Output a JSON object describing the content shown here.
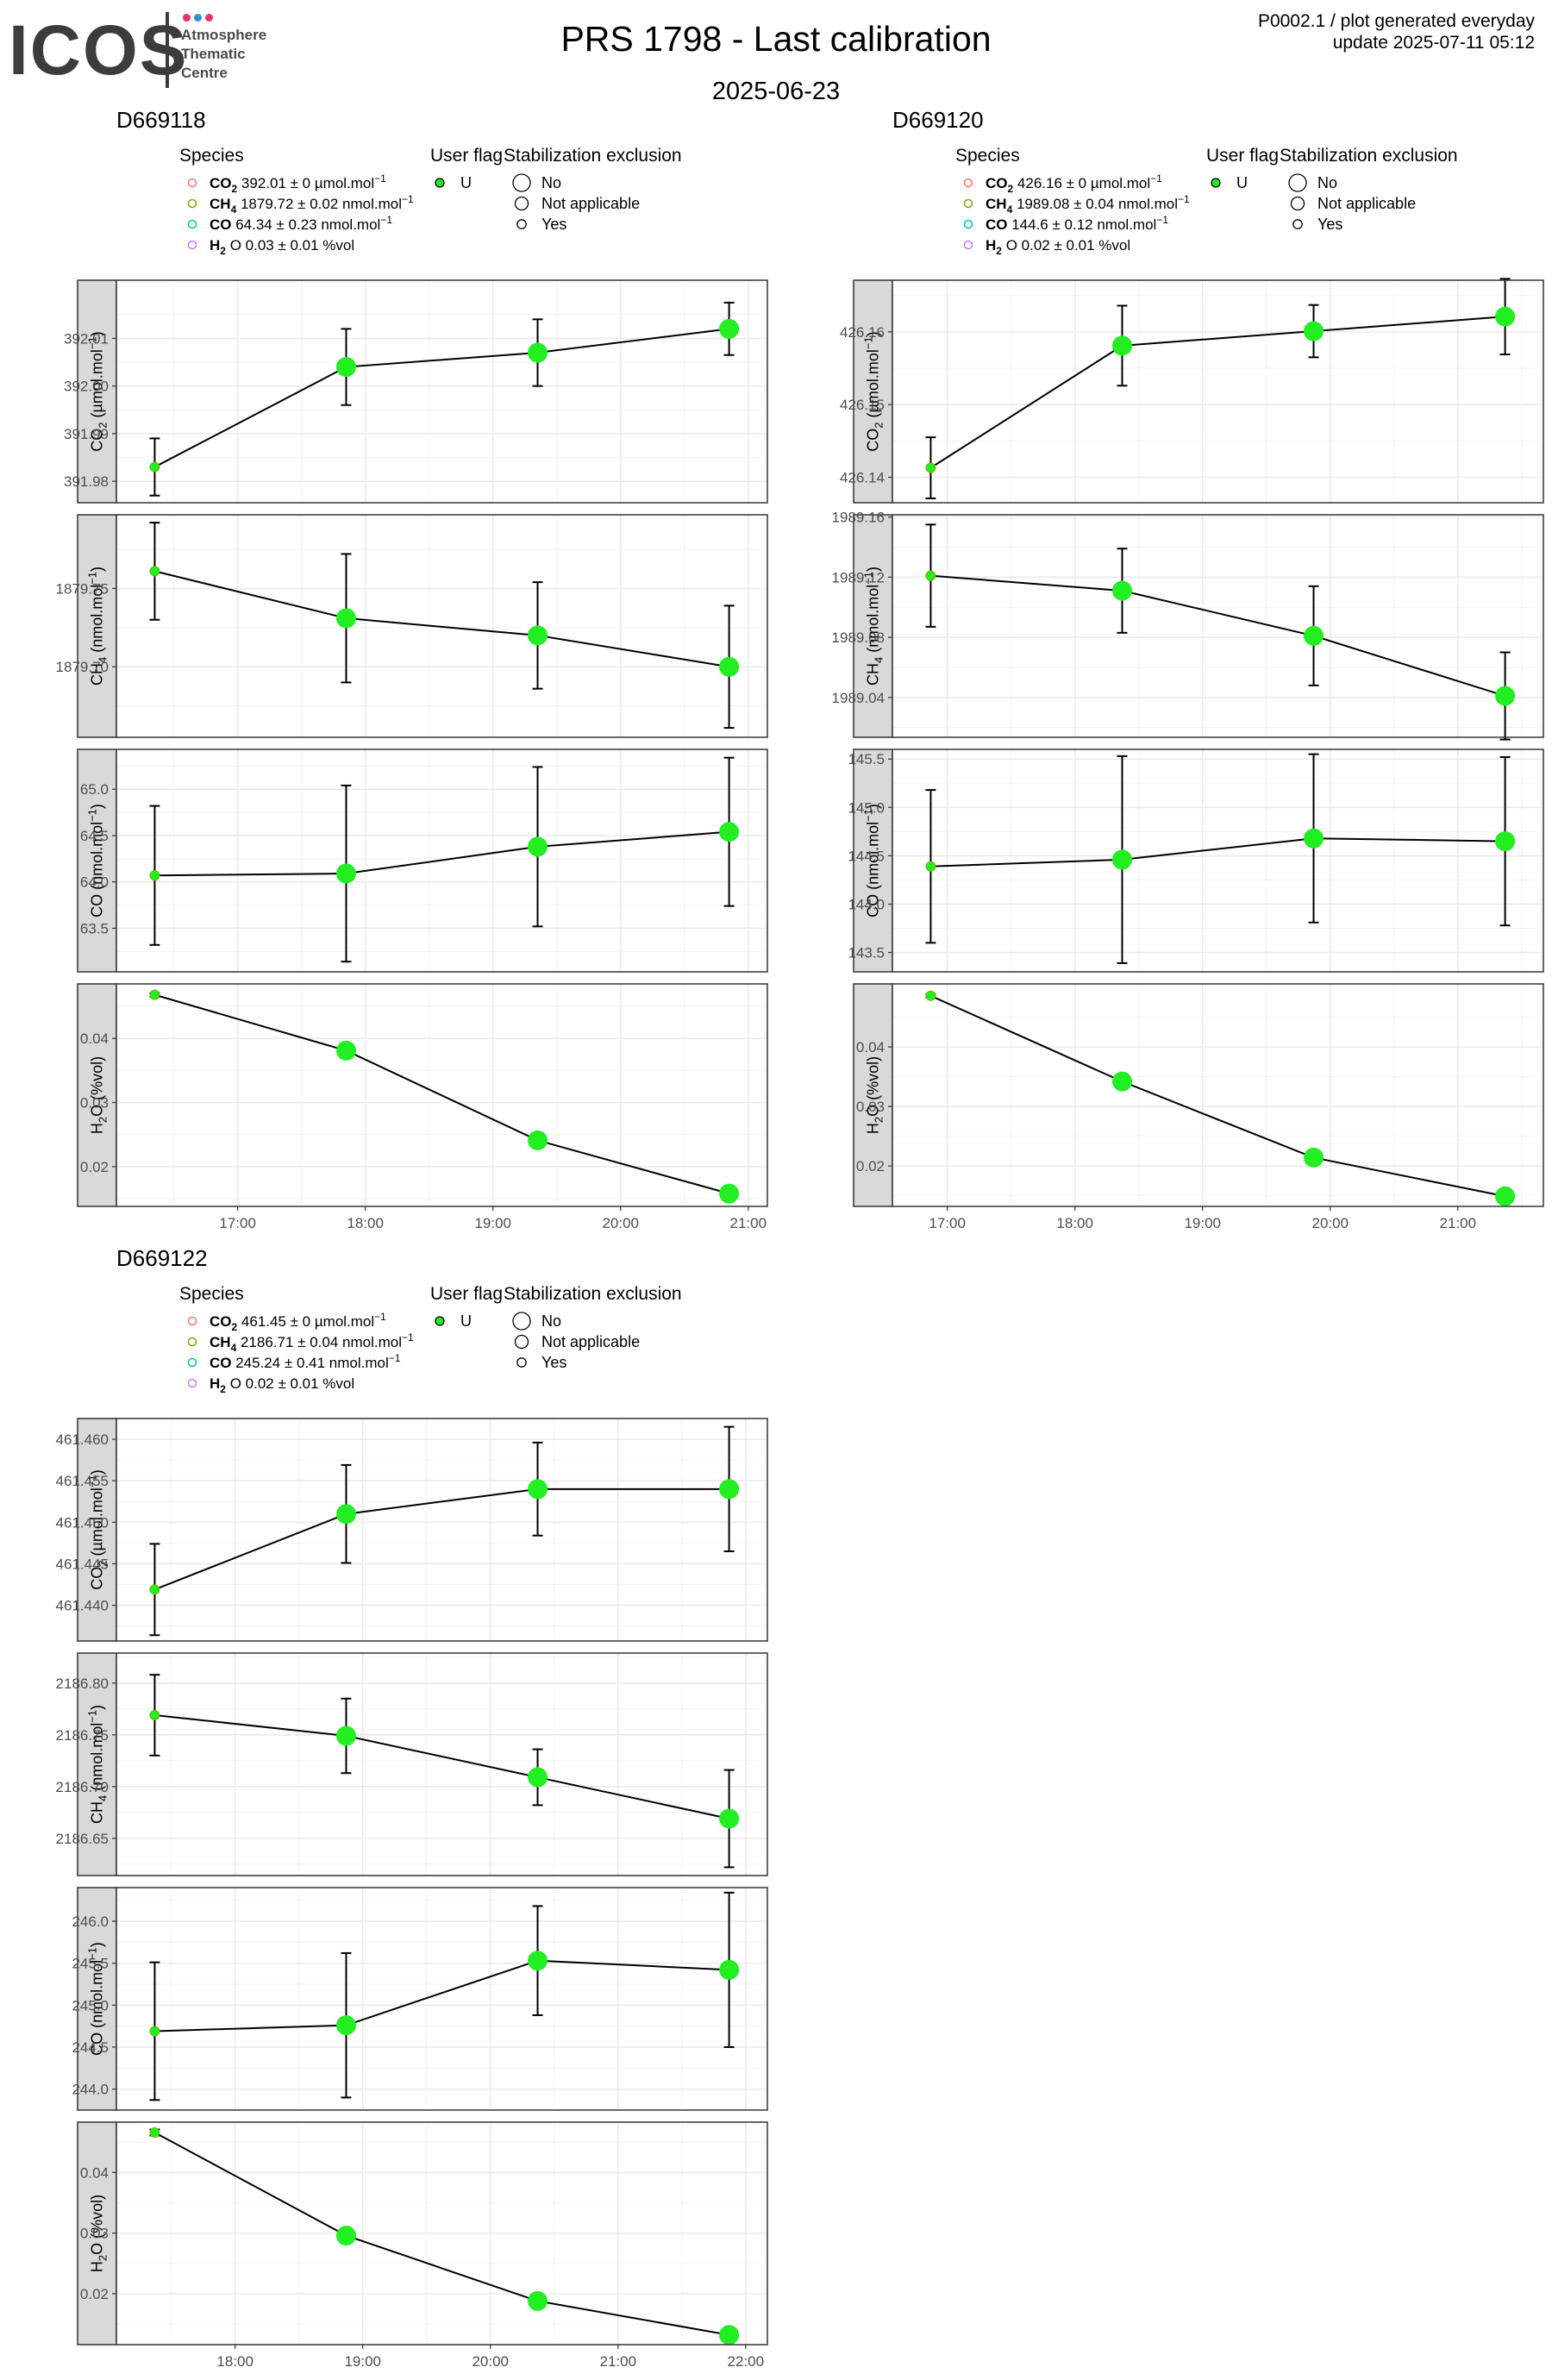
{
  "header": {
    "logo": {
      "word": "ICOS",
      "sub": "Atmosphere\nThematic\nCentre",
      "dot_colors": [
        "#e8336d",
        "#2f8fd6",
        "#e8336d"
      ]
    },
    "title": "PRS 1798 - Last calibration",
    "subtitle": "2025-06-23",
    "meta_line1": "P0002.1 / plot generated everyday",
    "meta_line2": "update  2025-07-11 05:12"
  },
  "legend_text": {
    "species_title": "Species",
    "flag_title": "User flag",
    "flag_value": "U",
    "stab_title": "Stabilization exclusion",
    "stab_items": [
      "No",
      "Not applicable",
      "Yes"
    ]
  },
  "colors": {
    "point": "#22ee22",
    "strip": "#d9d9d9",
    "grid": "#ebebeb",
    "species": [
      "#f8766d",
      "#7cae00",
      "#00bfc4",
      "#c77cff"
    ]
  },
  "chart_data": [
    {
      "type": "line",
      "title": "D669118",
      "species_legend": [
        {
          "name": "CO",
          "sub": "2",
          "text": "392.01 ± 0 µmol.mol",
          "sup": "−1"
        },
        {
          "name": "CH",
          "sub": "4",
          "text": "1879.72 ± 0.02 nmol.mol",
          "sup": "−1"
        },
        {
          "name": "CO",
          "sub": "",
          "text": "64.34 ± 0.23 nmol.mol",
          "sup": "−1"
        },
        {
          "name": "H",
          "sub": "2",
          "text": "O 0.03 ± 0.01 %vol",
          "sup": ""
        }
      ],
      "x_ticks": [
        "17:00",
        "18:00",
        "19:00",
        "20:00",
        "21:00"
      ],
      "x_tick_hours": [
        17,
        18,
        19,
        20,
        21
      ],
      "xlim": [
        16.05,
        21.15
      ],
      "x": [
        16.35,
        17.85,
        19.35,
        20.85
      ],
      "point_size": [
        1,
        3,
        3,
        3
      ],
      "panels": [
        {
          "ylabel": {
            "main": "CO",
            "sub": "2",
            "unit": " (µmol.mol",
            "sup": "−1",
            "close": ")"
          },
          "ylim": [
            391.9755,
            392.0222
          ],
          "yticks": [
            391.98,
            391.99,
            392.0,
            392.01
          ],
          "y": [
            391.983,
            392.004,
            392.007,
            392.012
          ],
          "err": [
            0.006,
            0.008,
            0.007,
            0.0055
          ]
        },
        {
          "ylabel": {
            "main": "CH",
            "sub": "4",
            "unit": " (nmol.mol",
            "sup": "−1",
            "close": ")"
          },
          "ylim": [
            1879.655,
            1879.797
          ],
          "yticks": [
            1879.7,
            1879.75
          ],
          "y": [
            1879.761,
            1879.731,
            1879.72,
            1879.7
          ],
          "err": [
            0.031,
            0.041,
            0.034,
            0.039
          ]
        },
        {
          "ylabel": {
            "main": "CO",
            "sub": "",
            "unit": " (nmol.mol",
            "sup": "−1",
            "close": ")"
          },
          "ylim": [
            63.03,
            65.43
          ],
          "yticks": [
            63.5,
            64.0,
            64.5,
            65.0
          ],
          "y": [
            64.07,
            64.09,
            64.38,
            64.54
          ],
          "err": [
            0.75,
            0.95,
            0.86,
            0.8
          ]
        },
        {
          "ylabel": {
            "main": "H",
            "sub": "2",
            "unit": "O (%vol)",
            "sup": "",
            "close": ""
          },
          "ylim": [
            0.0138,
            0.0485
          ],
          "yticks": [
            0.02,
            0.03,
            0.04
          ],
          "y": [
            0.0468,
            0.0381,
            0.0241,
            0.0158
          ],
          "err": [
            0.0003,
            0.0009,
            0.0006,
            0.0005
          ]
        }
      ]
    },
    {
      "type": "line",
      "title": "D669120",
      "species_legend": [
        {
          "name": "CO",
          "sub": "2",
          "text": "426.16 ± 0 µmol.mol",
          "sup": "−1"
        },
        {
          "name": "CH",
          "sub": "4",
          "text": "1989.08 ± 0.04 nmol.mol",
          "sup": "−1"
        },
        {
          "name": "CO",
          "sub": "",
          "text": "144.6 ± 0.12 nmol.mol",
          "sup": "−1"
        },
        {
          "name": "H",
          "sub": "2",
          "text": "O 0.02 ± 0.01 %vol",
          "sup": ""
        }
      ],
      "x_ticks": [
        "17:00",
        "18:00",
        "19:00",
        "20:00",
        "21:00"
      ],
      "x_tick_hours": [
        17,
        18,
        19,
        20,
        21
      ],
      "xlim": [
        16.57,
        21.67
      ],
      "x": [
        16.87,
        18.37,
        19.87,
        21.37
      ],
      "point_size": [
        1,
        3,
        3,
        3
      ],
      "panels": [
        {
          "ylabel": {
            "main": "CO",
            "sub": "2",
            "unit": " (µmol.mol",
            "sup": "−1",
            "close": ")"
          },
          "ylim": [
            426.1365,
            426.1671
          ],
          "yticks": [
            426.14,
            426.15,
            426.16
          ],
          "y": [
            426.1413,
            426.1581,
            426.1601,
            426.1621
          ],
          "err": [
            0.0042,
            0.0055,
            0.0036,
            0.0052
          ]
        },
        {
          "ylabel": {
            "main": "CH",
            "sub": "4",
            "unit": " (nmol.mol",
            "sup": "−1",
            "close": ")"
          },
          "ylim": [
            1989.0135,
            1989.1615
          ],
          "yticks": [
            1989.04,
            1989.08,
            1989.12,
            1989.16
          ],
          "y": [
            1989.121,
            1989.111,
            1989.081,
            1989.041
          ],
          "err": [
            0.034,
            0.028,
            0.033,
            0.029
          ]
        },
        {
          "ylabel": {
            "main": "CO",
            "sub": "",
            "unit": " (nmol.mol",
            "sup": "−1",
            "close": ")"
          },
          "ylim": [
            143.3,
            145.6
          ],
          "yticks": [
            143.5,
            144.0,
            144.5,
            145.0,
            145.5
          ],
          "y": [
            144.39,
            144.46,
            144.68,
            144.65
          ],
          "err": [
            0.79,
            1.07,
            0.87,
            0.87
          ]
        },
        {
          "ylabel": {
            "main": "H",
            "sub": "2",
            "unit": "O (%vol)",
            "sup": "",
            "close": ""
          },
          "ylim": [
            0.0132,
            0.0506
          ],
          "yticks": [
            0.02,
            0.03,
            0.04
          ],
          "y": [
            0.0486,
            0.0342,
            0.0214,
            0.0149
          ],
          "err": [
            0.0003,
            0.0006,
            0.0005,
            0.0004
          ]
        }
      ]
    },
    {
      "type": "line",
      "title": "D669122",
      "species_legend": [
        {
          "name": "CO",
          "sub": "2",
          "text": "461.45 ± 0 µmol.mol",
          "sup": "−1"
        },
        {
          "name": "CH",
          "sub": "4",
          "text": "2186.71 ± 0.04 nmol.mol",
          "sup": "−1"
        },
        {
          "name": "CO",
          "sub": "",
          "text": "245.24 ± 0.41 nmol.mol",
          "sup": "−1"
        },
        {
          "name": "H",
          "sub": "2",
          "text": "O 0.02 ± 0.01 %vol",
          "sup": ""
        }
      ],
      "x_ticks": [
        "18:00",
        "19:00",
        "20:00",
        "21:00",
        "22:00"
      ],
      "x_tick_hours": [
        18,
        19,
        20,
        21,
        22
      ],
      "xlim": [
        17.07,
        22.17
      ],
      "x": [
        17.37,
        18.87,
        20.37,
        21.87
      ],
      "point_size": [
        1,
        3,
        3,
        3
      ],
      "panels": [
        {
          "ylabel": {
            "main": "CO",
            "sub": "2",
            "unit": " (µmol.mol",
            "sup": "−1",
            "close": ")"
          },
          "ylim": [
            461.4357,
            461.4625
          ],
          "yticks": [
            461.44,
            461.445,
            461.45,
            461.455,
            461.46
          ],
          "y": [
            461.4419,
            461.451,
            461.454,
            461.454
          ],
          "err": [
            0.0055,
            0.0059,
            0.0056,
            0.0075
          ]
        },
        {
          "ylabel": {
            "main": "CH",
            "sub": "4",
            "unit": " (nmol.mol",
            "sup": "−1",
            "close": ")"
          },
          "ylim": [
            2186.614,
            2186.829
          ],
          "yticks": [
            2186.65,
            2186.7,
            2186.75,
            2186.8
          ],
          "y": [
            2186.769,
            2186.749,
            2186.709,
            2186.669
          ],
          "err": [
            0.039,
            0.036,
            0.027,
            0.047
          ]
        },
        {
          "ylabel": {
            "main": "CO",
            "sub": "",
            "unit": " (nmol.mol",
            "sup": "−1",
            "close": ")"
          },
          "ylim": [
            243.75,
            246.4
          ],
          "yticks": [
            244.0,
            244.5,
            245.0,
            245.5,
            246.0
          ],
          "y": [
            244.69,
            244.76,
            245.53,
            245.42
          ],
          "err": [
            0.82,
            0.86,
            0.65,
            0.92
          ]
        },
        {
          "ylabel": {
            "main": "H",
            "sub": "2",
            "unit": "O (%vol)",
            "sup": "",
            "close": ""
          },
          "ylim": [
            0.0116,
            0.0483
          ],
          "yticks": [
            0.02,
            0.03,
            0.04
          ],
          "y": [
            0.0466,
            0.0296,
            0.0188,
            0.0132
          ],
          "err": [
            0.0005,
            0.0005,
            0.0004,
            0.0003
          ]
        }
      ]
    }
  ]
}
